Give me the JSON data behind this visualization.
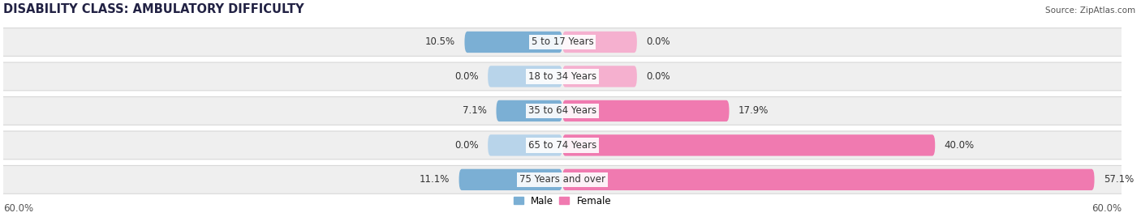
{
  "title": "DISABILITY CLASS: AMBULATORY DIFFICULTY",
  "source": "Source: ZipAtlas.com",
  "categories": [
    "5 to 17 Years",
    "18 to 34 Years",
    "35 to 64 Years",
    "65 to 74 Years",
    "75 Years and over"
  ],
  "male_values": [
    10.5,
    0.0,
    7.1,
    0.0,
    11.1
  ],
  "female_values": [
    0.0,
    0.0,
    17.9,
    40.0,
    57.1
  ],
  "male_color": "#7bafd4",
  "female_color": "#f07ab0",
  "male_color_light": "#b8d4ea",
  "female_color_light": "#f5b0cf",
  "row_bg_color": "#efefef",
  "row_border_color": "#d8d8d8",
  "xlim": 60.0,
  "axis_label_left": "60.0%",
  "axis_label_right": "60.0%",
  "title_fontsize": 10.5,
  "label_fontsize": 8.5,
  "bar_height": 0.62,
  "figsize": [
    14.06,
    2.68
  ],
  "dpi": 100
}
